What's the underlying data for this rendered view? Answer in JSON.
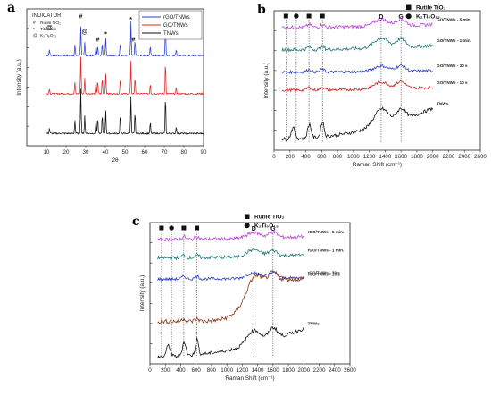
{
  "chart_data": [
    {
      "panel": "a",
      "type": "line",
      "xlabel": "2θ",
      "ylabel": "Intensity (a.u.)",
      "xlim": [
        0,
        90
      ],
      "xticks": [
        "10",
        "20",
        "30",
        "40",
        "50",
        "60",
        "70",
        "80",
        "90"
      ],
      "legend": [
        "rGO/TNWs",
        "GO/TNWs",
        "TNWs"
      ],
      "indicator": {
        "title": "INDICATOR",
        "items": [
          {
            "symbol": "#",
            "label": "Rutile TiO₂"
          },
          {
            "symbol": "*",
            "label": "Titanium"
          },
          {
            "symbol": "@",
            "label": "K₂Ti₆O₁₃"
          }
        ]
      },
      "peak_markers": [
        {
          "symbol": "@",
          "x": 11.5
        },
        {
          "symbol": "#",
          "x": 27.5
        },
        {
          "symbol": "@",
          "x": 29.5
        },
        {
          "symbol": "#",
          "x": 36.1
        },
        {
          "symbol": "*",
          "x": 40.2
        },
        {
          "symbol": "*",
          "x": 53.0
        },
        {
          "symbol": "#",
          "x": 54.3
        },
        {
          "symbol": "*",
          "x": 70.6
        }
      ],
      "series": [
        {
          "name": "rGO/TNWs",
          "color": "#2b3fd6",
          "peaks": [
            [
              11.5,
              0.12
            ],
            [
              24.5,
              0.2
            ],
            [
              27.5,
              0.55
            ],
            [
              29.5,
              0.25
            ],
            [
              35.2,
              0.18
            ],
            [
              36.1,
              0.2
            ],
            [
              38.4,
              0.25
            ],
            [
              40.2,
              0.36
            ],
            [
              47.6,
              0.25
            ],
            [
              53.0,
              0.65
            ],
            [
              55.1,
              0.3
            ],
            [
              62.9,
              0.18
            ],
            [
              70.6,
              0.62
            ],
            [
              76.1,
              0.12
            ]
          ]
        },
        {
          "name": "GO/TNWs",
          "color": "#e02626",
          "peaks": [
            [
              11.5,
              0.1
            ],
            [
              24.5,
              0.22
            ],
            [
              27.5,
              0.7
            ],
            [
              29.5,
              0.3
            ],
            [
              35.2,
              0.22
            ],
            [
              36.1,
              0.25
            ],
            [
              38.4,
              0.3
            ],
            [
              40.2,
              0.4
            ],
            [
              47.6,
              0.3
            ],
            [
              53.0,
              0.62
            ],
            [
              55.1,
              0.32
            ],
            [
              62.9,
              0.2
            ],
            [
              70.6,
              0.62
            ],
            [
              76.1,
              0.12
            ]
          ]
        },
        {
          "name": "TNWs",
          "color": "#111111",
          "peaks": [
            [
              11.5,
              0.1
            ],
            [
              24.5,
              0.25
            ],
            [
              27.5,
              0.85
            ],
            [
              29.5,
              0.35
            ],
            [
              35.2,
              0.25
            ],
            [
              36.1,
              0.3
            ],
            [
              38.4,
              0.35
            ],
            [
              40.2,
              0.45
            ],
            [
              47.6,
              0.35
            ],
            [
              53.0,
              0.72
            ],
            [
              55.1,
              0.4
            ],
            [
              62.9,
              0.22
            ],
            [
              70.6,
              0.72
            ],
            [
              76.1,
              0.14
            ]
          ]
        }
      ]
    },
    {
      "panel": "b",
      "type": "line",
      "xlabel": "Raman Shift (cm⁻¹)",
      "ylabel": "Intensity (a.u.)",
      "xlim": [
        0,
        2600
      ],
      "xticks": [
        "0",
        "200",
        "400",
        "600",
        "800",
        "1000",
        "1200",
        "1400",
        "1600",
        "1800",
        "2000",
        "2200",
        "2400",
        "2600"
      ],
      "legend": [
        {
          "marker": "square",
          "label": "Rutile TiO₂"
        },
        {
          "marker": "circle",
          "label": "K₂Ti₆O₁₃"
        }
      ],
      "band_labels": [
        {
          "label": "D",
          "x": 1350
        },
        {
          "label": "G",
          "x": 1600
        }
      ],
      "reference_lines": [
        150,
        280,
        440,
        610,
        1350,
        1600
      ],
      "top_markers": [
        {
          "marker": "square",
          "x": 150
        },
        {
          "marker": "circle",
          "x": 280
        },
        {
          "marker": "square",
          "x": 440
        },
        {
          "marker": "square",
          "x": 610
        }
      ],
      "series": [
        {
          "name": "GO/TNWs - 5 min.",
          "color": "#c040e0",
          "offset": 0.88,
          "D": 0.05,
          "G": 0.05,
          "slope": 0.02,
          "noise": 0.012
        },
        {
          "name": "GO/TNWs - 1 min.",
          "color": "#1f7a7a",
          "offset": 0.72,
          "D": 0.07,
          "G": 0.06,
          "slope": 0.03,
          "noise": 0.012
        },
        {
          "name": "GO/TNWs - 30 s",
          "color": "#2b3fc0",
          "offset": 0.56,
          "D": 0.04,
          "G": 0.04,
          "slope": 0.01,
          "noise": 0.01
        },
        {
          "name": "GO/TNWs - 10 s",
          "color": "#d02020",
          "offset": 0.43,
          "D": 0.05,
          "G": 0.05,
          "slope": 0.02,
          "noise": 0.01
        },
        {
          "name": "TNWs",
          "color": "#111111",
          "offset": 0.08,
          "D": 0.12,
          "G": 0.08,
          "slope": 0.22,
          "noise": 0.012,
          "low_peaks": true
        }
      ]
    },
    {
      "panel": "c",
      "type": "line",
      "xlabel": "Raman Shift (cm⁻¹)",
      "ylabel": "Intensity (a.u.)",
      "xlim": [
        0,
        2600
      ],
      "xticks": [
        "0",
        "200",
        "400",
        "600",
        "800",
        "1000",
        "1200",
        "1400",
        "1600",
        "1800",
        "2000",
        "2200",
        "2400",
        "2600"
      ],
      "legend": [
        {
          "marker": "square",
          "label": "Rutile TiO₂"
        },
        {
          "marker": "circle",
          "label": "K₂Ti₆O₁₃"
        }
      ],
      "band_labels": [
        {
          "label": "D",
          "x": 1350
        },
        {
          "label": "G",
          "x": 1600
        }
      ],
      "reference_lines": [
        150,
        280,
        440,
        610,
        1350,
        1600
      ],
      "top_markers": [
        {
          "marker": "square",
          "x": 150
        },
        {
          "marker": "circle",
          "x": 280
        },
        {
          "marker": "square",
          "x": 440
        },
        {
          "marker": "square",
          "x": 610
        }
      ],
      "series": [
        {
          "name": "rGO/TNWs - 5 min.",
          "color": "#c040e0",
          "offset": 0.88,
          "D": 0.04,
          "G": 0.04,
          "slope": 0.02,
          "noise": 0.012
        },
        {
          "name": "rGO/TNWs - 1 min.",
          "color": "#1f7a7a",
          "offset": 0.75,
          "D": 0.05,
          "G": 0.04,
          "slope": 0.02,
          "noise": 0.012
        },
        {
          "name": "rGO/TNWs - 30 s",
          "color": "#2b3fc0",
          "offset": 0.6,
          "D": 0.04,
          "G": 0.04,
          "slope": 0.01,
          "noise": 0.01
        },
        {
          "name": "rGO/TNWs - 10 s",
          "color": "#8b3a1a",
          "offset": 0.3,
          "D": 0.1,
          "G": 0.06,
          "slope": 0.3,
          "noise": 0.015,
          "sigmoid": true
        },
        {
          "name": "TNWs",
          "color": "#111111",
          "offset": 0.05,
          "D": 0.1,
          "G": 0.08,
          "slope": 0.2,
          "noise": 0.012,
          "low_peaks": true
        }
      ]
    }
  ]
}
